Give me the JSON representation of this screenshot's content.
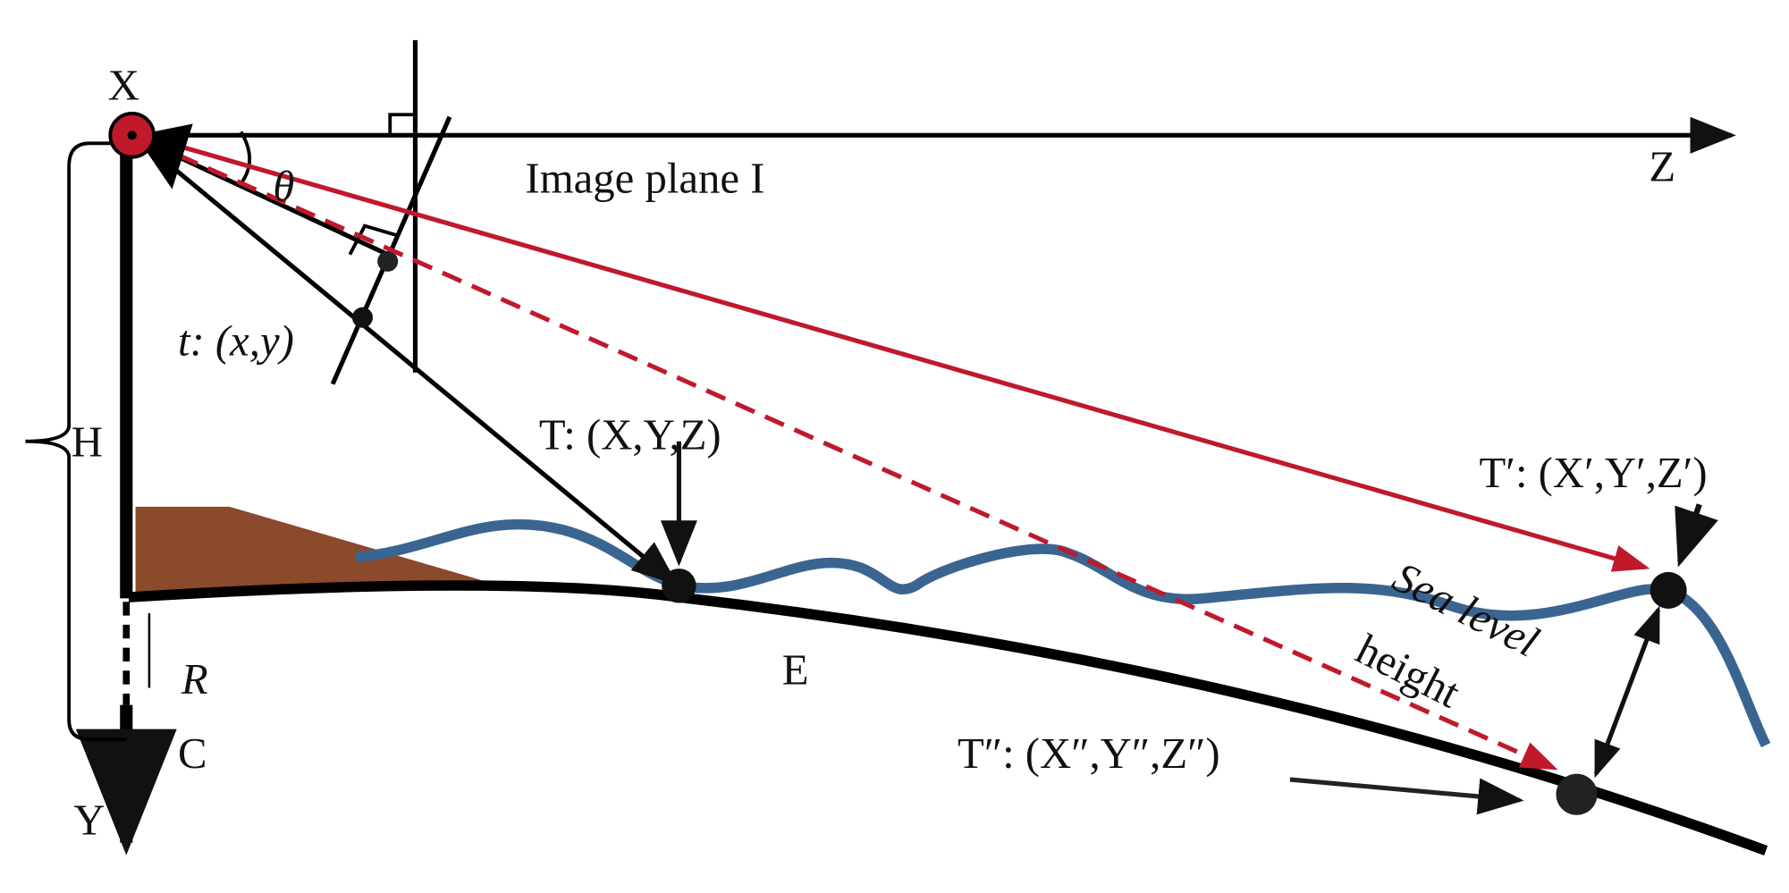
{
  "axes": {
    "x": "X",
    "y": "Y",
    "z": "Z"
  },
  "labels": {
    "image_plane": "Image plane I",
    "angle": "θ",
    "image_point": "t: (x,y)",
    "height": "H",
    "radius": "R",
    "center": "C",
    "earth": "E",
    "target": "T: (X,Y,Z)",
    "target_prime": "T′: (X′,Y′,Z′)",
    "target_double_prime": "T″: (X″,Y″,Z″)",
    "sea_level": [
      "Sea level",
      "height"
    ]
  }
}
